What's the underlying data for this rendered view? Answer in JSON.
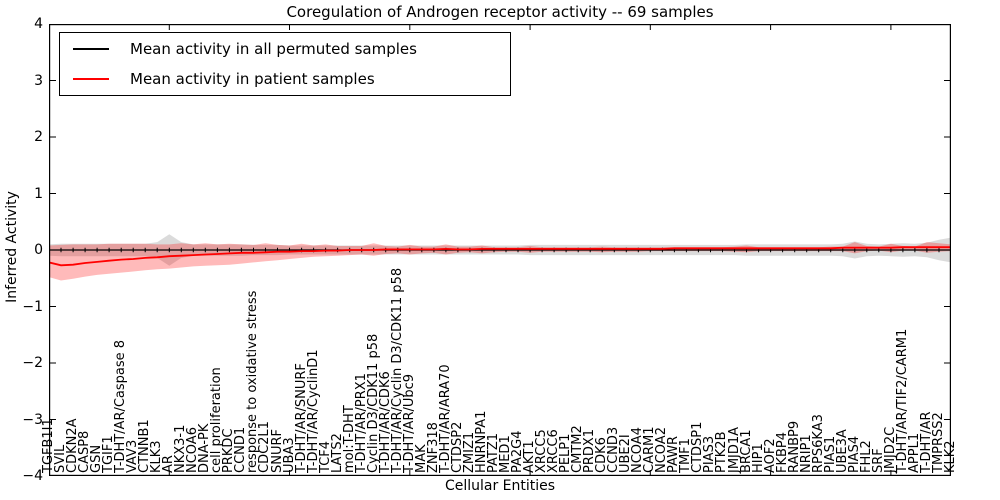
{
  "chart_data": {
    "type": "line",
    "title": "Coregulation of Androgen receptor activity -- 69 samples",
    "xlabel": "Cellular Entities",
    "ylabel": "Inferred Activity",
    "ylim": [
      -4,
      4
    ],
    "grid": false,
    "legend_position": "upper left",
    "yticks": [
      {
        "v": -4,
        "label": "−4"
      },
      {
        "v": -3,
        "label": "−3"
      },
      {
        "v": -2,
        "label": "−2"
      },
      {
        "v": -1,
        "label": "−1"
      },
      {
        "v": 0,
        "label": "0"
      },
      {
        "v": 1,
        "label": "1"
      },
      {
        "v": 2,
        "label": "2"
      },
      {
        "v": 3,
        "label": "3"
      },
      {
        "v": 4,
        "label": "4"
      }
    ],
    "x_major_ticks": [
      10,
      20,
      30,
      40,
      50,
      60,
      70
    ],
    "categories": [
      "TGFB1I1",
      "SVIL",
      "CDKN2A",
      "CASP8",
      "GSN",
      "TGIF1",
      "T-DHT/AR/Caspase 8",
      "VAV3",
      "CTNNB1",
      "KLK3",
      "AR",
      "NKX3-1",
      "NCOA6",
      "DNA-PK",
      "cell proliferation",
      "PRKDC",
      "CCND1",
      "response to oxidative stress",
      "CDC2L1",
      "SNURF",
      "UBA3",
      "T-DHT/AR/SNURF",
      "T-DHT/AR/CyclinD1",
      "TCF4",
      "LATS2",
      "mol:T-DHT",
      "T-DHT/AR/PRX1",
      "Cyclin D3/CDK11 p58",
      "T-DHT/AR/CDK6",
      "T-DHT/AR/Cyclin D3/CDK11 p58",
      "T-DHT/AR/Ubc9",
      "MAK",
      "ZNF318",
      "T-DHT/AR/ARA70",
      "CTDSP2",
      "ZMIZ1",
      "HNRNPA1",
      "PATZ1",
      "MED1",
      "PA2G4",
      "AKT1",
      "XRCC5",
      "XRCC6",
      "PELP1",
      "CMTM2",
      "PRDX1",
      "CDK6",
      "CCND3",
      "UBE2I",
      "NCOA4",
      "CARM1",
      "NCOA2",
      "PAWR",
      "TMF1",
      "CTDSP1",
      "PIAS3",
      "PTK2B",
      "JMJD1A",
      "BRCA1",
      "HIP1",
      "AOF2",
      "FKBP4",
      "RANBP9",
      "NRIP1",
      "RPS6KA3",
      "PIAS1",
      "UBE3A",
      "PIAS4",
      "FHL2",
      "SRF",
      "JMJD2C",
      "T-DHT/AR/TIF2/CARM1",
      "APPL1",
      "T-DHT/AR",
      "TMPRSS2",
      "KLK2"
    ],
    "series": [
      {
        "name": "Mean activity in all permuted samples",
        "color": "#000000",
        "line_width": 1.3,
        "markers": true,
        "band_color": "#000000",
        "band_opacity": 0.14,
        "values": [
          0,
          0,
          0,
          0,
          0,
          0,
          0,
          0,
          0,
          0,
          0,
          0,
          0,
          0,
          0,
          0,
          0,
          0,
          0,
          0,
          0,
          0,
          0,
          0,
          0,
          0,
          0,
          0,
          0,
          0,
          0,
          0,
          0,
          0,
          0,
          0,
          0,
          0,
          0,
          0,
          0,
          0,
          0,
          0,
          0,
          0,
          0,
          0,
          0,
          0,
          0,
          0,
          0,
          0,
          0,
          0,
          0,
          0,
          0,
          0,
          0,
          0,
          0,
          0,
          0,
          0,
          0,
          0,
          0,
          0,
          0,
          0,
          0,
          0,
          0,
          0
        ],
        "band_upper": [
          0.1,
          0.11,
          0.11,
          0.11,
          0.11,
          0.11,
          0.11,
          0.11,
          0.11,
          0.14,
          0.28,
          0.14,
          0.1,
          0.1,
          0.1,
          0.1,
          0.1,
          0.09,
          0.09,
          0.09,
          0.08,
          0.08,
          0.08,
          0.08,
          0.08,
          0.08,
          0.08,
          0.08,
          0.08,
          0.08,
          0.08,
          0.08,
          0.08,
          0.08,
          0.08,
          0.08,
          0.08,
          0.08,
          0.08,
          0.08,
          0.09,
          0.09,
          0.09,
          0.09,
          0.09,
          0.09,
          0.09,
          0.09,
          0.09,
          0.09,
          0.09,
          0.09,
          0.09,
          0.09,
          0.09,
          0.09,
          0.09,
          0.09,
          0.1,
          0.1,
          0.1,
          0.1,
          0.1,
          0.1,
          0.1,
          0.1,
          0.11,
          0.15,
          0.11,
          0.1,
          0.11,
          0.12,
          0.11,
          0.13,
          0.18,
          0.22
        ],
        "band_lower": [
          -0.1,
          -0.11,
          -0.11,
          -0.11,
          -0.11,
          -0.11,
          -0.11,
          -0.11,
          -0.11,
          -0.14,
          -0.28,
          -0.14,
          -0.1,
          -0.1,
          -0.1,
          -0.1,
          -0.1,
          -0.09,
          -0.09,
          -0.09,
          -0.08,
          -0.08,
          -0.08,
          -0.08,
          -0.08,
          -0.08,
          -0.08,
          -0.08,
          -0.08,
          -0.08,
          -0.08,
          -0.08,
          -0.08,
          -0.08,
          -0.08,
          -0.08,
          -0.08,
          -0.08,
          -0.08,
          -0.08,
          -0.09,
          -0.09,
          -0.09,
          -0.09,
          -0.09,
          -0.09,
          -0.09,
          -0.09,
          -0.09,
          -0.09,
          -0.09,
          -0.09,
          -0.09,
          -0.09,
          -0.09,
          -0.09,
          -0.09,
          -0.09,
          -0.1,
          -0.1,
          -0.1,
          -0.1,
          -0.1,
          -0.1,
          -0.1,
          -0.1,
          -0.11,
          -0.15,
          -0.11,
          -0.1,
          -0.11,
          -0.12,
          -0.11,
          -0.13,
          -0.18,
          -0.22
        ]
      },
      {
        "name": "Mean activity in patient samples",
        "color": "#ff0000",
        "line_width": 1.8,
        "markers": false,
        "band_color": "#ff0000",
        "band_opacity": 0.27,
        "values": [
          -0.22,
          -0.27,
          -0.26,
          -0.23,
          -0.21,
          -0.19,
          -0.17,
          -0.16,
          -0.14,
          -0.13,
          -0.11,
          -0.1,
          -0.09,
          -0.08,
          -0.07,
          -0.06,
          -0.05,
          -0.05,
          -0.04,
          -0.03,
          -0.03,
          -0.02,
          -0.02,
          -0.01,
          -0.01,
          0.0,
          0.0,
          0.0,
          0.01,
          0.01,
          0.01,
          0.01,
          0.01,
          0.02,
          0.01,
          0.01,
          0.02,
          0.02,
          0.02,
          0.02,
          0.02,
          0.02,
          0.02,
          0.02,
          0.02,
          0.02,
          0.02,
          0.02,
          0.02,
          0.02,
          0.02,
          0.02,
          0.03,
          0.03,
          0.03,
          0.03,
          0.03,
          0.03,
          0.03,
          0.03,
          0.03,
          0.03,
          0.03,
          0.03,
          0.03,
          0.03,
          0.04,
          0.04,
          0.04,
          0.04,
          0.04,
          0.05,
          0.05,
          0.05,
          0.05,
          0.05
        ],
        "band_upper": [
          0.08,
          0.09,
          0.1,
          0.1,
          0.1,
          0.11,
          0.11,
          0.11,
          0.11,
          0.1,
          0.1,
          0.12,
          0.1,
          0.12,
          0.1,
          0.11,
          0.1,
          0.09,
          0.12,
          0.09,
          0.08,
          0.11,
          0.08,
          0.1,
          0.07,
          0.07,
          0.07,
          0.12,
          0.07,
          0.06,
          0.09,
          0.06,
          0.06,
          0.1,
          0.06,
          0.06,
          0.08,
          0.05,
          0.05,
          0.05,
          0.07,
          0.05,
          0.05,
          0.05,
          0.05,
          0.05,
          0.06,
          0.05,
          0.05,
          0.05,
          0.05,
          0.05,
          0.05,
          0.05,
          0.05,
          0.05,
          0.05,
          0.06,
          0.08,
          0.05,
          0.05,
          0.05,
          0.05,
          0.05,
          0.05,
          0.06,
          0.06,
          0.14,
          0.07,
          0.06,
          0.11,
          0.07,
          0.06,
          0.14,
          0.12,
          0.1
        ],
        "band_lower": [
          -0.48,
          -0.54,
          -0.51,
          -0.47,
          -0.44,
          -0.42,
          -0.4,
          -0.38,
          -0.36,
          -0.34,
          -0.33,
          -0.31,
          -0.29,
          -0.28,
          -0.27,
          -0.26,
          -0.24,
          -0.22,
          -0.2,
          -0.18,
          -0.16,
          -0.14,
          -0.12,
          -0.11,
          -0.1,
          -0.09,
          -0.08,
          -0.1,
          -0.07,
          -0.06,
          -0.08,
          -0.06,
          -0.05,
          -0.08,
          -0.05,
          -0.04,
          -0.06,
          -0.04,
          -0.03,
          -0.03,
          -0.05,
          -0.03,
          -0.03,
          -0.03,
          -0.03,
          -0.03,
          -0.04,
          -0.03,
          -0.03,
          -0.03,
          -0.02,
          -0.02,
          -0.02,
          -0.02,
          -0.02,
          -0.02,
          -0.02,
          -0.03,
          -0.04,
          -0.02,
          -0.02,
          -0.02,
          -0.02,
          -0.02,
          -0.02,
          -0.02,
          -0.02,
          -0.06,
          -0.02,
          -0.01,
          -0.04,
          -0.01,
          -0.01,
          -0.05,
          -0.03,
          -0.02
        ]
      }
    ]
  }
}
